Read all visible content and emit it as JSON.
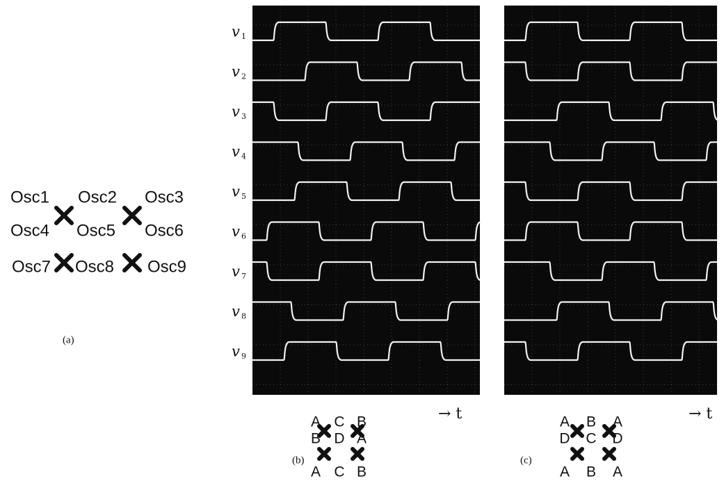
{
  "panel_a": {
    "nodes": [
      "Osc1",
      "Osc2",
      "Osc3",
      "Osc4",
      "Osc5",
      "Osc6",
      "Osc7",
      "Osc8",
      "Osc9"
    ],
    "caption": "(a)"
  },
  "panel_b": {
    "traces": [
      {
        "symbol": "v",
        "index": "1"
      },
      {
        "symbol": "v",
        "index": "2"
      },
      {
        "symbol": "v",
        "index": "3"
      },
      {
        "symbol": "v",
        "index": "4"
      },
      {
        "symbol": "v",
        "index": "5"
      },
      {
        "symbol": "v",
        "index": "6"
      },
      {
        "symbol": "v",
        "index": "7"
      },
      {
        "symbol": "v",
        "index": "8"
      },
      {
        "symbol": "v",
        "index": "9"
      }
    ],
    "top_labels": [
      "A",
      "C",
      "B"
    ],
    "middle_labels": [
      "B",
      "D",
      "A"
    ],
    "bottom_labels": [
      "A",
      "C",
      "B"
    ],
    "time_label": "→ t",
    "caption": "(b)"
  },
  "panel_c": {
    "top_labels": [
      "A",
      "B",
      "A"
    ],
    "middle_labels": [
      "D",
      "C",
      "D"
    ],
    "bottom_labels": [
      "A",
      "B",
      "A"
    ],
    "time_label": "→ t",
    "caption": "(c)"
  }
}
